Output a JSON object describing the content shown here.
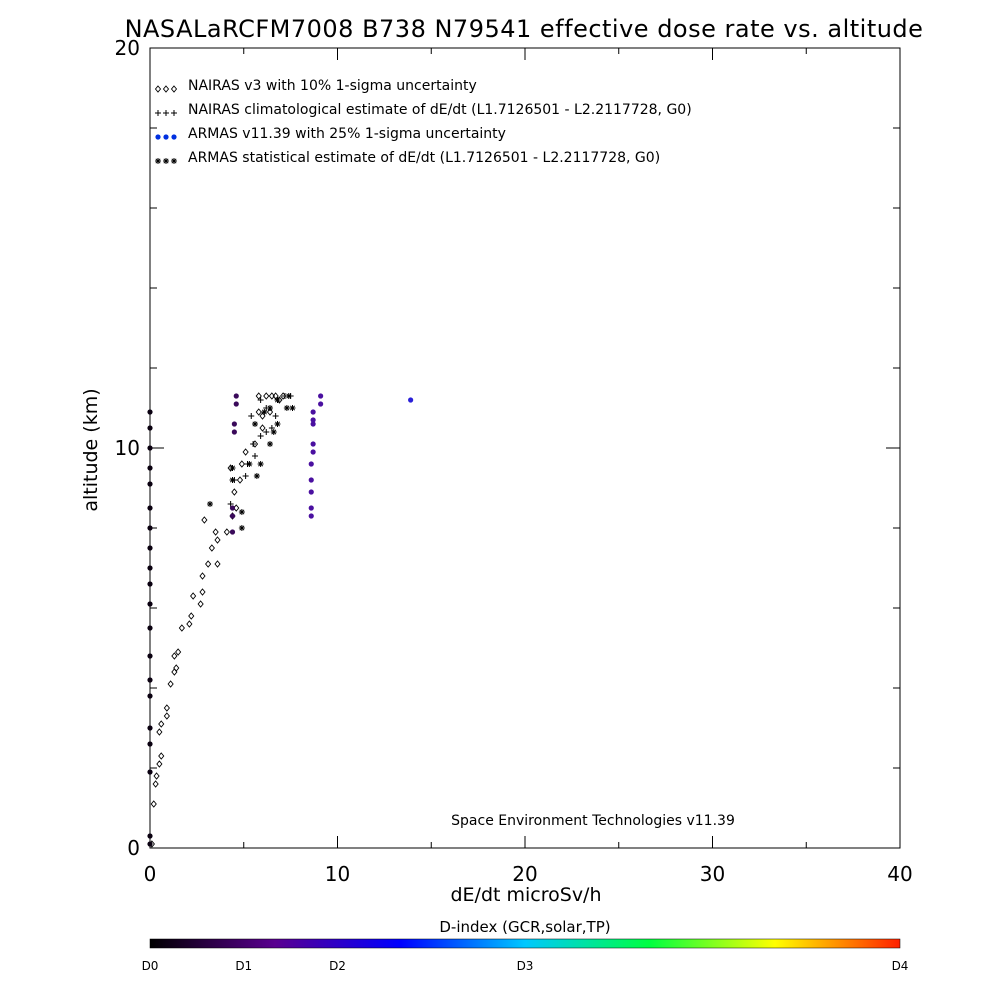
{
  "chart_data": {
    "type": "scatter",
    "title": "NASALaRCFM7008  B738 N79541 effective dose rate vs. altitude",
    "xlabel": "dE/dt microSv/h",
    "ylabel": "altitude (km)",
    "xlim": [
      0,
      40
    ],
    "ylim": [
      0,
      20
    ],
    "x_ticks": [
      "0",
      "10",
      "20",
      "30",
      "40"
    ],
    "y_ticks": [
      "0",
      "10",
      "20"
    ],
    "legend_position": "top-left",
    "credit": "Space Environment Technologies v11.39",
    "colorbar": {
      "title": "D-index (GCR,solar,TP)",
      "labels": [
        {
          "text": "D0",
          "value": 0
        },
        {
          "text": "D1",
          "value": 1
        },
        {
          "text": "D2",
          "value": 2
        },
        {
          "text": "D3",
          "value": 3
        },
        {
          "text": "D4",
          "value": 4
        }
      ],
      "colors": [
        "#000000",
        "#5a0090",
        "#0000ff",
        "#00c8ff",
        "#00ff40",
        "#ffff00",
        "#ff2000"
      ]
    },
    "series": [
      {
        "name": "NAIRAS v3 with 10% 1-sigma uncertainty",
        "marker": "diamond",
        "color": "#000000",
        "points": [
          [
            0.1,
            0.1
          ],
          [
            0.2,
            1.1
          ],
          [
            0.3,
            1.6
          ],
          [
            0.35,
            1.8
          ],
          [
            0.5,
            2.1
          ],
          [
            0.6,
            2.3
          ],
          [
            0.5,
            2.9
          ],
          [
            0.6,
            3.1
          ],
          [
            0.9,
            3.3
          ],
          [
            0.9,
            3.5
          ],
          [
            1.1,
            4.1
          ],
          [
            1.3,
            4.4
          ],
          [
            1.4,
            4.5
          ],
          [
            1.3,
            4.8
          ],
          [
            1.5,
            4.9
          ],
          [
            1.7,
            5.5
          ],
          [
            2.1,
            5.6
          ],
          [
            2.2,
            5.8
          ],
          [
            2.3,
            6.3
          ],
          [
            2.7,
            6.1
          ],
          [
            2.8,
            6.4
          ],
          [
            2.8,
            6.8
          ],
          [
            3.1,
            7.1
          ],
          [
            3.6,
            7.1
          ],
          [
            3.3,
            7.5
          ],
          [
            3.6,
            7.7
          ],
          [
            3.5,
            7.9
          ],
          [
            4.1,
            7.9
          ],
          [
            2.9,
            8.2
          ],
          [
            4.4,
            8.3
          ],
          [
            4.6,
            8.5
          ],
          [
            4.5,
            8.9
          ],
          [
            4.8,
            9.2
          ],
          [
            4.3,
            9.5
          ],
          [
            4.9,
            9.6
          ],
          [
            5.1,
            9.9
          ],
          [
            5.6,
            10.1
          ],
          [
            6.0,
            10.5
          ],
          [
            6.0,
            10.8
          ],
          [
            5.8,
            10.9
          ],
          [
            6.4,
            10.9
          ],
          [
            5.8,
            11.3
          ],
          [
            6.2,
            11.3
          ],
          [
            6.5,
            11.3
          ],
          [
            6.7,
            11.3
          ],
          [
            6.9,
            11.2
          ],
          [
            7.1,
            11.3
          ]
        ]
      },
      {
        "name": "NAIRAS climatological estimate of dE/dt (L1.7126501 - L2.2117728, G0)",
        "marker": "plus",
        "color": "#000000",
        "points": [
          [
            3.2,
            8.6
          ],
          [
            4.3,
            8.6
          ],
          [
            4.5,
            9.2
          ],
          [
            5.1,
            9.3
          ],
          [
            5.2,
            9.6
          ],
          [
            5.6,
            9.8
          ],
          [
            5.5,
            10.1
          ],
          [
            5.9,
            10.3
          ],
          [
            6.2,
            10.4
          ],
          [
            6.5,
            10.5
          ],
          [
            5.4,
            10.8
          ],
          [
            6.7,
            10.8
          ],
          [
            6.2,
            11.0
          ],
          [
            5.9,
            11.2
          ],
          [
            6.8,
            11.2
          ],
          [
            7.2,
            11.3
          ],
          [
            7.5,
            11.3
          ]
        ]
      },
      {
        "name": "ARMAS v11.39 with 25% 1-sigma uncertainty",
        "marker": "dot",
        "color": "#0030e0",
        "points": [
          [
            0.0,
            0.1
          ],
          [
            0.0,
            0.3
          ],
          [
            0.0,
            1.9
          ],
          [
            0.0,
            2.6
          ],
          [
            0.0,
            3.0
          ],
          [
            0.0,
            3.8
          ],
          [
            0.0,
            4.2
          ],
          [
            0.0,
            4.8
          ],
          [
            0.0,
            5.5
          ],
          [
            0.0,
            6.1
          ],
          [
            0.0,
            6.6
          ],
          [
            0.0,
            7.0
          ],
          [
            0.0,
            7.5
          ],
          [
            0.0,
            8.0
          ],
          [
            0.0,
            8.5
          ],
          [
            0.0,
            9.1
          ],
          [
            0.0,
            9.5
          ],
          [
            0.0,
            10.0
          ],
          [
            0.0,
            10.5
          ],
          [
            0.0,
            10.9
          ],
          [
            4.4,
            7.9
          ],
          [
            4.4,
            8.3
          ],
          [
            4.4,
            8.5
          ],
          [
            4.5,
            10.4
          ],
          [
            4.5,
            10.6
          ],
          [
            4.6,
            11.1
          ],
          [
            4.6,
            11.3
          ],
          [
            8.6,
            8.3
          ],
          [
            8.6,
            8.5
          ],
          [
            8.6,
            8.9
          ],
          [
            8.6,
            9.2
          ],
          [
            8.6,
            9.6
          ],
          [
            8.7,
            9.9
          ],
          [
            8.7,
            10.1
          ],
          [
            8.7,
            10.6
          ],
          [
            8.7,
            10.7
          ],
          [
            8.7,
            10.9
          ],
          [
            9.1,
            11.1
          ],
          [
            9.1,
            11.3
          ],
          [
            13.9,
            11.2
          ]
        ],
        "point_colors": "d_index_scale"
      },
      {
        "name": "ARMAS statistical estimate of dE/dt (L1.7126501 - L2.2117728, G0)",
        "marker": "asterisk",
        "color": "#000000",
        "points": [
          [
            3.2,
            8.6
          ],
          [
            4.9,
            8.0
          ],
          [
            4.9,
            8.4
          ],
          [
            4.4,
            9.2
          ],
          [
            4.4,
            9.5
          ],
          [
            5.3,
            9.6
          ],
          [
            5.7,
            9.3
          ],
          [
            5.9,
            9.6
          ],
          [
            6.4,
            10.1
          ],
          [
            6.6,
            10.4
          ],
          [
            5.6,
            10.6
          ],
          [
            6.8,
            10.6
          ],
          [
            6.1,
            10.9
          ],
          [
            6.4,
            11.0
          ],
          [
            7.3,
            11.0
          ],
          [
            7.6,
            11.0
          ],
          [
            6.8,
            11.2
          ],
          [
            7.4,
            11.3
          ]
        ]
      }
    ]
  }
}
